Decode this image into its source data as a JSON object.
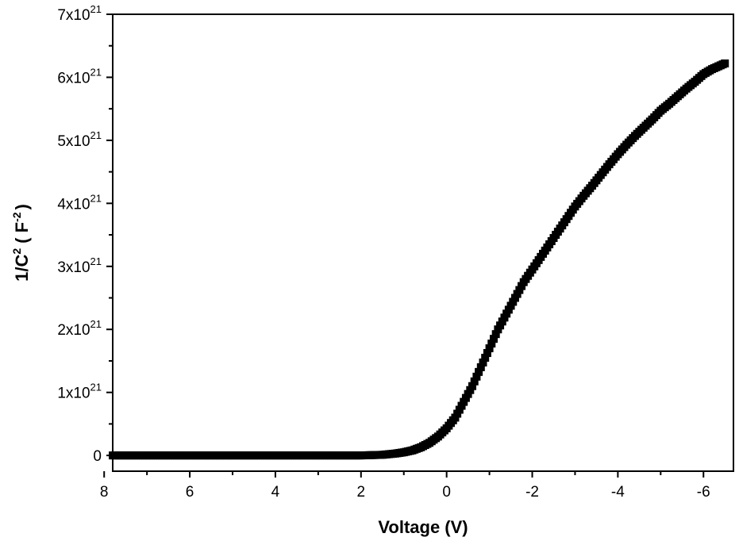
{
  "chart_data": {
    "type": "scatter",
    "xlabel": "Voltage (V)",
    "ylabel_main": "1/C",
    "ylabel_exp": "2",
    "ylabel_unit_pre": "( F",
    "ylabel_unit_exp": "-2",
    "ylabel_unit_post": ")",
    "xlim": [
      7.8,
      -6.7
    ],
    "ylim": [
      -2.5e+20,
      7e+21
    ],
    "x_ticks": [
      {
        "value": 8,
        "label": "8"
      },
      {
        "value": 6,
        "label": "6"
      },
      {
        "value": 4,
        "label": "4"
      },
      {
        "value": 2,
        "label": "2"
      },
      {
        "value": 0,
        "label": "0"
      },
      {
        "value": -2,
        "label": "-2"
      },
      {
        "value": -4,
        "label": "-4"
      },
      {
        "value": -6,
        "label": "-6"
      }
    ],
    "y_ticks": [
      {
        "value": 0,
        "base": "0",
        "exp": ""
      },
      {
        "value": 1e+21,
        "base": "1x10",
        "exp": "21"
      },
      {
        "value": 2e+21,
        "base": "2x10",
        "exp": "21"
      },
      {
        "value": 3e+21,
        "base": "3x10",
        "exp": "21"
      },
      {
        "value": 4e+21,
        "base": "4x10",
        "exp": "21"
      },
      {
        "value": 5e+21,
        "base": "5x10",
        "exp": "21"
      },
      {
        "value": 6e+21,
        "base": "6x10",
        "exp": "21"
      },
      {
        "value": 7e+21,
        "base": "7x10",
        "exp": "21"
      }
    ],
    "grid": false,
    "marker": "square",
    "color": "#000000",
    "x": [
      7.8,
      7.0,
      6.0,
      5.0,
      4.0,
      3.0,
      2.0,
      1.5,
      1.2,
      1.0,
      0.8,
      0.6,
      0.4,
      0.2,
      0.0,
      -0.2,
      -0.4,
      -0.6,
      -0.8,
      -1.0,
      -1.2,
      -1.4,
      -1.6,
      -1.8,
      -2.0,
      -2.2,
      -2.4,
      -2.6,
      -2.8,
      -3.0,
      -3.2,
      -3.4,
      -3.6,
      -3.8,
      -4.0,
      -4.2,
      -4.4,
      -4.6,
      -4.8,
      -5.0,
      -5.2,
      -5.4,
      -5.6,
      -5.8,
      -6.0,
      -6.2,
      -6.5
    ],
    "y": [
      0,
      0,
      0,
      0,
      0,
      0,
      0,
      1e+19,
      3e+19,
      5e+19,
      8e+19,
      1.3e+20,
      2e+20,
      3e+20,
      4.3e+20,
      6e+20,
      8.5e+20,
      1.1e+21,
      1.4e+21,
      1.7e+21,
      2e+21,
      2.25e+21,
      2.5e+21,
      2.75e+21,
      2.95e+21,
      3.15e+21,
      3.35e+21,
      3.55e+21,
      3.75e+21,
      3.95e+21,
      4.12e+21,
      4.28e+21,
      4.45e+21,
      4.62e+21,
      4.78e+21,
      4.93e+21,
      5.07e+21,
      5.2e+21,
      5.33e+21,
      5.47e+21,
      5.58e+21,
      5.7e+21,
      5.82e+21,
      5.93e+21,
      6.05e+21,
      6.13e+21,
      6.22e+21
    ]
  }
}
